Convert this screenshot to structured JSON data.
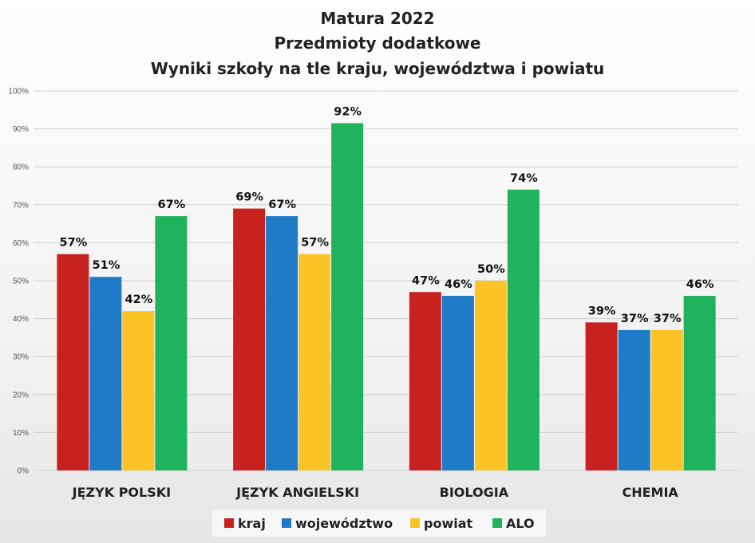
{
  "chart_data": {
    "type": "bar",
    "title": [
      "Matura 2022",
      "Przedmioty dodatkowe",
      "Wyniki szkoły na tle kraju, województwa i powiatu"
    ],
    "categories": [
      "JĘZYK POLSKI",
      "JĘZYK ANGIELSKI",
      "BIOLOGIA",
      "CHEMIA"
    ],
    "series": [
      {
        "name": "kraj",
        "color": "#c8221f",
        "values": [
          57,
          69,
          47,
          39
        ]
      },
      {
        "name": "województwo",
        "color": "#1f7ac8",
        "values": [
          51,
          67,
          46,
          37
        ]
      },
      {
        "name": "powiat",
        "color": "#fbc326",
        "values": [
          42,
          57,
          50,
          37
        ]
      },
      {
        "name": "ALO",
        "color": "#21b35c",
        "values": [
          67,
          92,
          74,
          46
        ]
      }
    ],
    "bar_display_values": [
      [
        57,
        69,
        47,
        39
      ],
      [
        51,
        67,
        46,
        37
      ],
      [
        42,
        57,
        50,
        37
      ],
      [
        67,
        91.5,
        74,
        46
      ]
    ],
    "yticks": [
      "0%",
      "10%",
      "20%",
      "30%",
      "40%",
      "50%",
      "60%",
      "70%",
      "80%",
      "90%",
      "100%"
    ],
    "ylim": [
      0,
      100
    ],
    "grid": true,
    "legend": "bottom",
    "xlabel": "",
    "ylabel": ""
  }
}
